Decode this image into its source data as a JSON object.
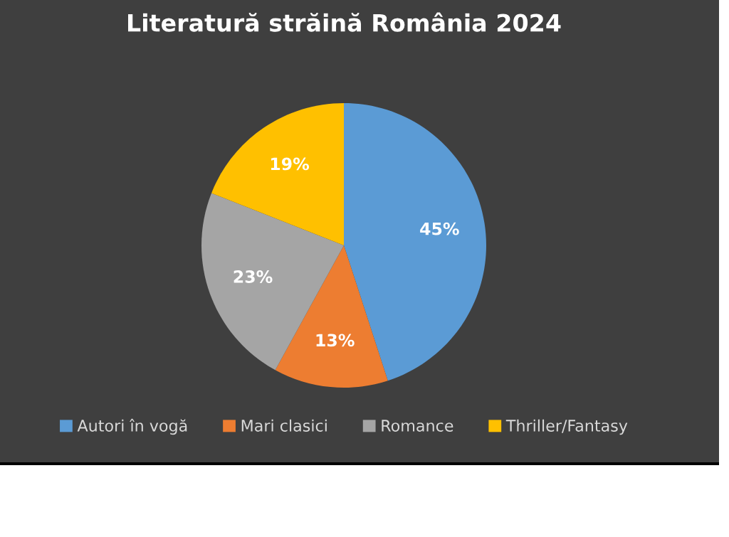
{
  "chart_data": {
    "type": "pie",
    "title": "Literatură străină România 2024",
    "categories": [
      "Autori în vogă",
      "Mari clasici",
      "Romance",
      "Thriller/Fantasy"
    ],
    "values": [
      45,
      13,
      23,
      19
    ],
    "colors": [
      "#5b9bd5",
      "#ed7d31",
      "#a5a5a5",
      "#ffc000"
    ],
    "value_labels": [
      "45%",
      "13%",
      "23%",
      "19%"
    ],
    "legend": "bottom"
  }
}
